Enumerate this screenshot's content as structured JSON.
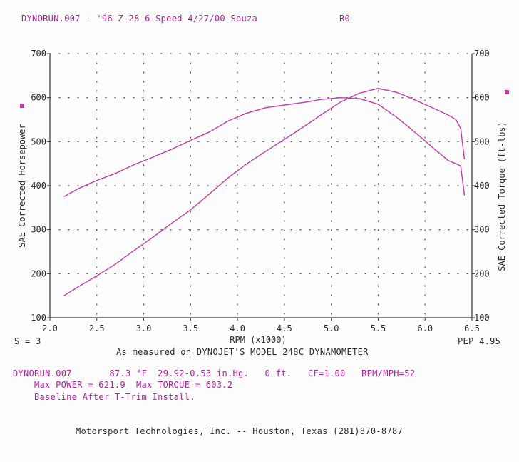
{
  "header": {
    "run_title": "DYNORUN.007 - '96 Z-28 6-Speed 4/27/00 Souza",
    "run_code": "R0"
  },
  "smoothing_label": "S = 3",
  "pep_label": "PEP 4.95",
  "measured_note": "As measured on DYNOJET'S MODEL 248C DYNAMOMETER",
  "run_info": {
    "line1": "DYNORUN.007       87.3 °F  29.92-0.53 in.Hg.   0 ft.   CF=1.00   RPM/MPH=52",
    "line2": "Max POWER = 621.9  Max TORQUE = 603.2",
    "line3": "Baseline After T-Trim Install."
  },
  "footer": "Motorsport Technologies, Inc. -- Houston, Texas (281)870-8787",
  "colors": {
    "curve": "#c23aa8",
    "text_pink": "#b0209a",
    "grid": "#555555"
  },
  "chart_data": {
    "type": "line",
    "xlabel": "RPM (x1000)",
    "ylabel_left": "SAE Corrected Horsepower",
    "ylabel_right": "SAE Corrected Torque (ft-lbs)",
    "xlim": [
      2.0,
      6.5
    ],
    "ylim": [
      100,
      700
    ],
    "x_ticks": [
      "2.0",
      "2.5",
      "3.0",
      "3.5",
      "4.0",
      "4.5",
      "5.0",
      "5.5",
      "6.0",
      "6.5"
    ],
    "y_ticks_left": [
      "100",
      "200",
      "300",
      "400",
      "500",
      "600",
      "700"
    ],
    "y_ticks_right": [
      "100",
      "200",
      "300",
      "400",
      "500",
      "600",
      "700"
    ],
    "grid": "dotted",
    "series": [
      {
        "name": "",
        "x": [
          2.15,
          2.3,
          2.5,
          2.7,
          2.9,
          3.1,
          3.3,
          3.5,
          3.7,
          3.9,
          4.1,
          4.3,
          4.5,
          4.7,
          4.9,
          5.1,
          5.3,
          5.5,
          5.7,
          5.9,
          6.1,
          6.25,
          6.33,
          6.38,
          6.42
        ],
        "y": [
          150,
          170,
          195,
          222,
          253,
          283,
          315,
          345,
          381,
          418,
          450,
          478,
          505,
          533,
          562,
          590,
          610,
          621,
          612,
          594,
          575,
          560,
          550,
          530,
          460
        ]
      },
      {
        "name": "",
        "x": [
          2.15,
          2.3,
          2.5,
          2.7,
          2.9,
          3.1,
          3.3,
          3.5,
          3.7,
          3.9,
          4.1,
          4.3,
          4.5,
          4.7,
          4.9,
          5.1,
          5.3,
          5.5,
          5.7,
          5.9,
          6.1,
          6.25,
          6.33,
          6.38,
          6.42
        ],
        "y": [
          375,
          393,
          412,
          428,
          448,
          465,
          483,
          503,
          522,
          547,
          565,
          577,
          583,
          589,
          596,
          600,
          598,
          585,
          555,
          520,
          483,
          457,
          450,
          445,
          378
        ]
      }
    ]
  }
}
